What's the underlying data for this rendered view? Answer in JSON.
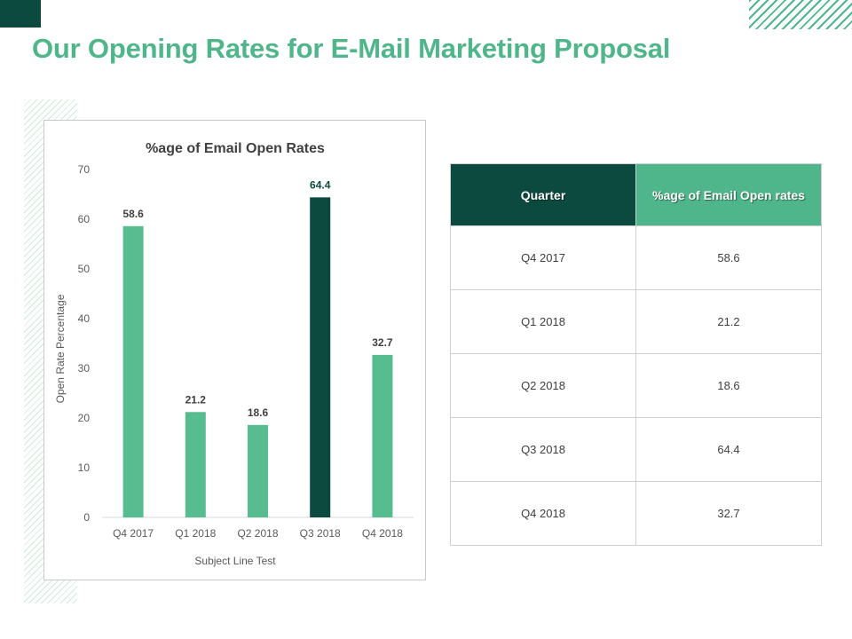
{
  "slide": {
    "title": "Our Opening Rates for E-Mail Marketing Proposal"
  },
  "colors": {
    "accent_light": "#4fb58a",
    "accent_dark": "#0c4a3f",
    "bar_light": "#57bc90",
    "bar_dark": "#0c4a3f"
  },
  "chart_data": {
    "type": "bar",
    "title": "%age of Email  Open Rates",
    "xlabel": "Subject Line Test",
    "ylabel": "Open Rate Percentage",
    "categories": [
      "Q4 2017",
      "Q1 2018",
      "Q2 2018",
      "Q3 2018",
      "Q4 2018"
    ],
    "values": [
      58.6,
      21.2,
      18.6,
      64.4,
      32.7
    ],
    "value_labels": [
      "58.6",
      "21.2",
      "18.6",
      "64.4",
      "32.7"
    ],
    "highlight_index": 3,
    "ylim": [
      0,
      70
    ],
    "yticks": [
      0,
      10,
      20,
      30,
      40,
      50,
      60,
      70
    ],
    "grid": false,
    "legend": "none"
  },
  "table": {
    "headers": [
      "Quarter",
      "%age of Email Open rates"
    ],
    "rows": [
      [
        "Q4 2017",
        "58.6"
      ],
      [
        "Q1 2018",
        "21.2"
      ],
      [
        "Q2 2018",
        "18.6"
      ],
      [
        "Q3 2018",
        "64.4"
      ],
      [
        "Q4 2018",
        "32.7"
      ]
    ]
  }
}
